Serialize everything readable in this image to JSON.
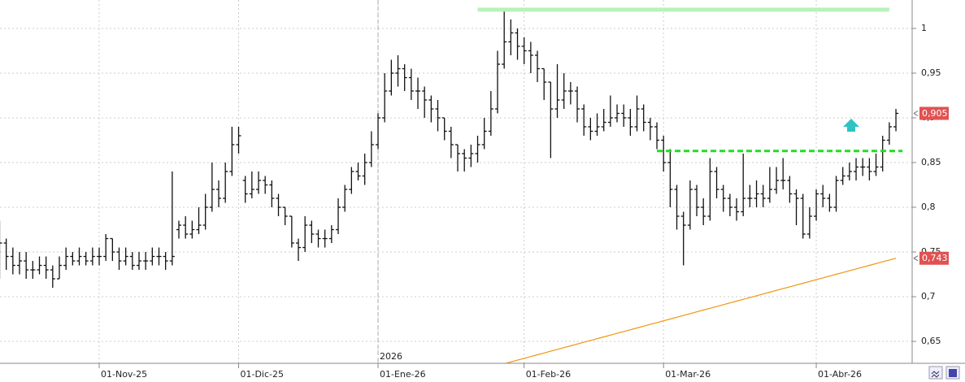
{
  "chart_data": {
    "type": "ohlc",
    "categories": [
      null,
      null,
      null,
      null,
      null,
      null,
      null,
      null,
      null,
      null,
      null,
      null,
      null,
      null,
      null,
      "01-Nov-25",
      null,
      null,
      null,
      null,
      null,
      null,
      null,
      null,
      null,
      null,
      null,
      null,
      null,
      null,
      null,
      null,
      null,
      null,
      null,
      null,
      "01-Dic-25",
      null,
      null,
      null,
      null,
      null,
      null,
      null,
      null,
      null,
      null,
      null,
      null,
      null,
      null,
      null,
      null,
      null,
      null,
      null,
      null,
      "01-Ene-26",
      null,
      null,
      null,
      null,
      null,
      null,
      null,
      null,
      null,
      null,
      null,
      null,
      null,
      null,
      null,
      null,
      null,
      null,
      null,
      null,
      null,
      "01-Feb-26",
      null,
      null,
      null,
      null,
      null,
      null,
      null,
      null,
      null,
      null,
      null,
      null,
      null,
      null,
      null,
      null,
      null,
      null,
      null,
      null,
      "01-Mar-26",
      null,
      null,
      null,
      null,
      null,
      null,
      null,
      null,
      null,
      null,
      null,
      null,
      null,
      null,
      null,
      null,
      null,
      null,
      null,
      null,
      null,
      null,
      "01-Abr-26",
      null,
      null,
      null,
      null,
      null,
      null,
      null,
      null,
      null,
      null,
      null,
      null
    ],
    "open": [
      0.77,
      0.76,
      0.745,
      0.735,
      0.74,
      0.73,
      0.73,
      0.735,
      0.73,
      0.72,
      0.735,
      0.745,
      0.74,
      0.745,
      0.74,
      0.745,
      0.745,
      0.765,
      0.75,
      0.74,
      0.745,
      0.735,
      0.74,
      0.74,
      0.745,
      0.745,
      0.74,
      0.775,
      0.78,
      0.77,
      0.775,
      0.78,
      0.8,
      0.82,
      0.81,
      0.84,
      0.87,
      0.83,
      0.815,
      0.82,
      0.83,
      0.825,
      0.81,
      0.8,
      0.79,
      0.76,
      0.755,
      0.78,
      0.77,
      0.765,
      0.765,
      0.775,
      0.8,
      0.82,
      0.84,
      0.835,
      0.85,
      0.87,
      0.9,
      0.93,
      0.95,
      0.955,
      0.945,
      0.93,
      0.93,
      0.92,
      0.91,
      0.9,
      0.885,
      0.87,
      0.86,
      0.855,
      0.86,
      0.87,
      0.885,
      0.91,
      0.96,
      0.985,
      0.995,
      0.98,
      0.975,
      0.97,
      0.955,
      0.94,
      0.91,
      0.92,
      0.93,
      0.93,
      0.91,
      0.89,
      0.885,
      0.89,
      0.895,
      0.9,
      0.905,
      0.9,
      0.89,
      0.91,
      0.895,
      0.89,
      0.875,
      0.85,
      0.82,
      0.79,
      0.78,
      0.82,
      0.8,
      0.79,
      0.84,
      0.82,
      0.81,
      0.8,
      0.795,
      0.81,
      0.81,
      0.815,
      0.81,
      0.82,
      0.83,
      0.83,
      0.815,
      0.81,
      0.77,
      0.79,
      0.815,
      0.81,
      0.8,
      0.83,
      0.835,
      0.84,
      0.845,
      0.845,
      0.84,
      0.845,
      0.875,
      0.89
    ],
    "high": [
      0.785,
      0.765,
      0.755,
      0.75,
      0.75,
      0.74,
      0.745,
      0.745,
      0.735,
      0.745,
      0.755,
      0.75,
      0.755,
      0.75,
      0.755,
      0.755,
      0.77,
      0.765,
      0.755,
      0.755,
      0.75,
      0.75,
      0.75,
      0.755,
      0.755,
      0.75,
      0.84,
      0.785,
      0.79,
      0.785,
      0.8,
      0.815,
      0.85,
      0.83,
      0.85,
      0.89,
      0.89,
      0.835,
      0.84,
      0.84,
      0.835,
      0.83,
      0.815,
      0.8,
      0.79,
      0.765,
      0.79,
      0.785,
      0.775,
      0.775,
      0.78,
      0.81,
      0.825,
      0.845,
      0.85,
      0.86,
      0.885,
      0.905,
      0.95,
      0.965,
      0.97,
      0.96,
      0.955,
      0.945,
      0.935,
      0.925,
      0.92,
      0.9,
      0.89,
      0.87,
      0.865,
      0.87,
      0.88,
      0.9,
      0.93,
      0.975,
      1.02,
      1.01,
      1.0,
      0.99,
      0.985,
      0.975,
      0.955,
      0.94,
      0.96,
      0.95,
      0.94,
      0.935,
      0.915,
      0.9,
      0.905,
      0.91,
      0.925,
      0.915,
      0.915,
      0.91,
      0.925,
      0.915,
      0.9,
      0.895,
      0.88,
      0.865,
      0.825,
      0.795,
      0.83,
      0.825,
      0.81,
      0.855,
      0.845,
      0.825,
      0.815,
      0.81,
      0.86,
      0.825,
      0.83,
      0.825,
      0.845,
      0.845,
      0.855,
      0.835,
      0.82,
      0.815,
      0.8,
      0.82,
      0.825,
      0.815,
      0.835,
      0.845,
      0.85,
      0.855,
      0.855,
      0.855,
      0.86,
      0.88,
      0.895,
      0.91
    ],
    "low": [
      0.72,
      0.73,
      0.725,
      0.725,
      0.72,
      0.72,
      0.725,
      0.72,
      0.71,
      0.72,
      0.73,
      0.735,
      0.735,
      0.735,
      0.735,
      0.735,
      0.74,
      0.74,
      0.73,
      0.735,
      0.73,
      0.73,
      0.73,
      0.735,
      0.735,
      0.73,
      0.735,
      0.765,
      0.765,
      0.765,
      0.77,
      0.775,
      0.795,
      0.8,
      0.805,
      0.835,
      0.86,
      0.805,
      0.81,
      0.815,
      0.815,
      0.8,
      0.79,
      0.78,
      0.755,
      0.74,
      0.75,
      0.76,
      0.755,
      0.755,
      0.76,
      0.77,
      0.795,
      0.815,
      0.83,
      0.825,
      0.845,
      0.865,
      0.895,
      0.925,
      0.935,
      0.93,
      0.92,
      0.91,
      0.9,
      0.895,
      0.885,
      0.875,
      0.855,
      0.84,
      0.84,
      0.845,
      0.85,
      0.865,
      0.88,
      0.905,
      0.955,
      0.97,
      0.965,
      0.96,
      0.95,
      0.94,
      0.92,
      0.855,
      0.9,
      0.91,
      0.915,
      0.895,
      0.88,
      0.875,
      0.88,
      0.885,
      0.89,
      0.895,
      0.89,
      0.88,
      0.885,
      0.885,
      0.875,
      0.865,
      0.84,
      0.8,
      0.775,
      0.735,
      0.775,
      0.79,
      0.78,
      0.785,
      0.81,
      0.795,
      0.79,
      0.785,
      0.79,
      0.8,
      0.8,
      0.8,
      0.805,
      0.815,
      0.82,
      0.805,
      0.78,
      0.765,
      0.765,
      0.785,
      0.8,
      0.795,
      0.795,
      0.825,
      0.83,
      0.83,
      0.835,
      0.83,
      0.835,
      0.84,
      0.87,
      0.885
    ],
    "close": [
      0.76,
      0.745,
      0.735,
      0.74,
      0.73,
      0.73,
      0.735,
      0.73,
      0.72,
      0.735,
      0.745,
      0.74,
      0.745,
      0.74,
      0.745,
      0.745,
      0.765,
      0.75,
      0.74,
      0.745,
      0.735,
      0.74,
      0.74,
      0.745,
      0.745,
      0.74,
      0.745,
      0.78,
      0.77,
      0.775,
      0.78,
      0.8,
      0.82,
      0.81,
      0.84,
      0.87,
      0.88,
      0.815,
      0.82,
      0.83,
      0.825,
      0.81,
      0.8,
      0.79,
      0.76,
      0.755,
      0.78,
      0.77,
      0.765,
      0.765,
      0.775,
      0.8,
      0.82,
      0.84,
      0.835,
      0.85,
      0.87,
      0.9,
      0.93,
      0.95,
      0.955,
      0.945,
      0.93,
      0.93,
      0.92,
      0.91,
      0.9,
      0.885,
      0.87,
      0.86,
      0.855,
      0.86,
      0.87,
      0.885,
      0.91,
      0.96,
      0.985,
      0.995,
      0.98,
      0.975,
      0.97,
      0.955,
      0.94,
      0.91,
      0.92,
      0.93,
      0.93,
      0.91,
      0.89,
      0.885,
      0.89,
      0.895,
      0.9,
      0.905,
      0.9,
      0.89,
      0.91,
      0.895,
      0.89,
      0.875,
      0.85,
      0.82,
      0.79,
      0.78,
      0.82,
      0.8,
      0.79,
      0.84,
      0.82,
      0.81,
      0.8,
      0.795,
      0.81,
      0.81,
      0.815,
      0.81,
      0.82,
      0.83,
      0.83,
      0.815,
      0.81,
      0.77,
      0.79,
      0.815,
      0.81,
      0.8,
      0.83,
      0.835,
      0.84,
      0.845,
      0.845,
      0.84,
      0.845,
      0.875,
      0.89,
      0.905
    ],
    "color": "#111111",
    "ma": {
      "color": "#f0960f",
      "values": [
        null,
        null,
        null,
        null,
        null,
        null,
        null,
        null,
        null,
        null,
        null,
        null,
        null,
        null,
        null,
        null,
        null,
        null,
        null,
        null,
        null,
        null,
        null,
        null,
        null,
        null,
        null,
        null,
        null,
        null,
        null,
        null,
        null,
        null,
        null,
        null,
        null,
        null,
        null,
        null,
        null,
        null,
        null,
        null,
        null,
        null,
        null,
        null,
        null,
        null,
        null,
        null,
        null,
        null,
        null,
        null,
        null,
        null,
        null,
        null,
        null,
        null,
        null,
        null,
        null,
        null,
        null,
        null,
        null,
        null,
        null,
        null,
        null,
        null,
        null,
        null,
        0.625,
        0.627,
        0.629,
        0.631,
        0.633,
        0.635,
        0.637,
        0.639,
        0.641,
        0.643,
        0.645,
        0.647,
        0.649,
        0.651,
        0.653,
        0.655,
        0.657,
        0.659,
        0.661,
        0.663,
        0.665,
        0.667,
        0.669,
        0.671,
        0.673,
        0.675,
        0.677,
        0.679,
        0.681,
        0.683,
        0.685,
        0.687,
        0.689,
        0.691,
        0.693,
        0.695,
        0.697,
        0.699,
        0.701,
        0.703,
        0.705,
        0.707,
        0.709,
        0.711,
        0.713,
        0.715,
        0.717,
        0.719,
        0.721,
        0.723,
        0.725,
        0.727,
        0.729,
        0.731,
        0.733,
        0.735,
        0.737,
        0.739,
        0.741,
        0.743
      ]
    },
    "levels": [
      {
        "value": 1.021,
        "from": 72,
        "to": 134,
        "color": "#b8f2b8",
        "style": "solid"
      },
      {
        "value": 0.863,
        "from": 99,
        "to": 136,
        "color": "#22dd22",
        "style": "dashed"
      }
    ],
    "price_labels": [
      {
        "value": 0.905,
        "label": "0,905"
      },
      {
        "value": 0.743,
        "label": "0,743"
      }
    ],
    "year_label": "2026",
    "ylim": [
      0.6255,
      1.0318
    ],
    "yticks": [
      {
        "value": 0.65,
        "label": "0,65"
      },
      {
        "value": 0.7,
        "label": "0,7"
      },
      {
        "value": 0.75,
        "label": "0,75"
      },
      {
        "value": 0.8,
        "label": "0,8"
      },
      {
        "value": 0.85,
        "label": "0,85"
      },
      {
        "value": 0.9,
        "label": "0,9"
      },
      {
        "value": 0.95,
        "label": "0,95"
      },
      1
    ],
    "grid": true
  }
}
